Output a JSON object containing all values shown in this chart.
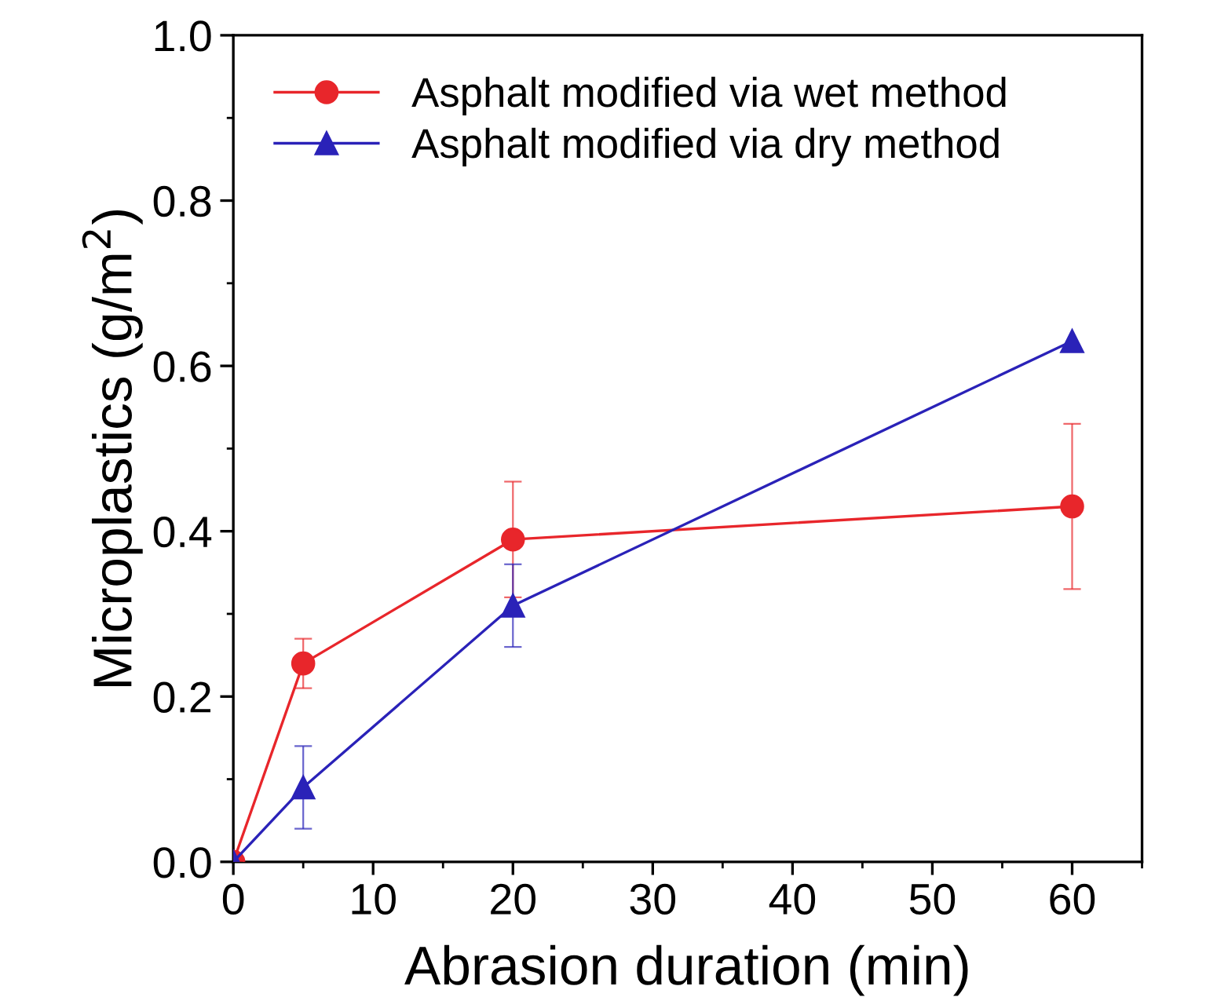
{
  "chart_data": {
    "type": "line",
    "xlabel": "Abrasion duration (min)",
    "ylabel": "Microplastics (g/m$^{2}$)",
    "x": [
      0,
      5,
      20,
      60
    ],
    "series": [
      {
        "name": "Asphalt modified via wet method",
        "color": "#e8262b",
        "marker": "circle",
        "values": [
          0,
          0.24,
          0.39,
          0.43
        ],
        "errors": [
          null,
          0.03,
          0.07,
          0.1
        ]
      },
      {
        "name": "Asphalt modified via dry method",
        "color": "#2a22b8",
        "marker": "triangle",
        "values": [
          0,
          0.09,
          0.31,
          0.63
        ],
        "errors": [
          null,
          0.05,
          0.05,
          null
        ]
      }
    ],
    "xlim": [
      0,
      65
    ],
    "ylim": [
      0,
      1.0
    ],
    "xticks": [
      0,
      {
        "value": 5,
        "label": null
      },
      10,
      {
        "value": 15,
        "label": null
      },
      20,
      {
        "value": 25,
        "label": null
      },
      30,
      {
        "value": 35,
        "label": null
      },
      40,
      {
        "value": 45,
        "label": null
      },
      50,
      {
        "value": 55,
        "label": null
      },
      60,
      {
        "value": 65,
        "label": null
      }
    ],
    "yticks": [
      {
        "value": 0,
        "label": "0.0"
      },
      {
        "value": 0.1,
        "label": null
      },
      0.2,
      {
        "value": 0.3,
        "label": null
      },
      0.4,
      {
        "value": 0.5,
        "label": null
      },
      0.6,
      {
        "value": 0.7,
        "label": null
      },
      0.8,
      {
        "value": 0.9,
        "label": null
      },
      {
        "value": 1.0,
        "label": "1.0"
      }
    ],
    "legend": "top left",
    "grid": false,
    "line_style": "solid"
  }
}
